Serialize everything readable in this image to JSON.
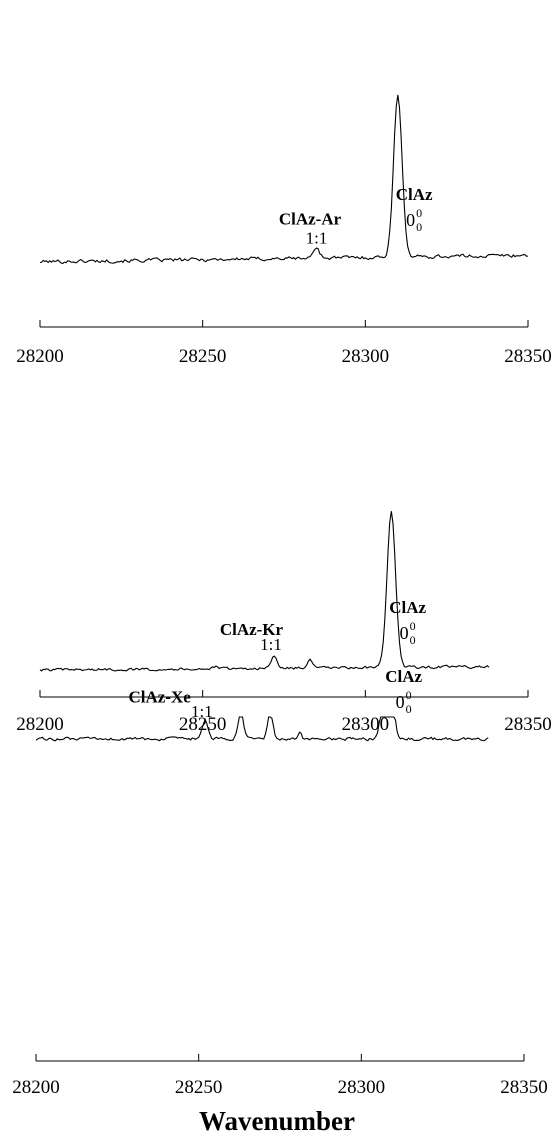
{
  "figure": {
    "xlabel": "Wavenumber"
  },
  "chart_data": [
    {
      "type": "line",
      "title": "",
      "xlim": [
        28200,
        28350
      ],
      "xticks": [
        28200,
        28250,
        28300,
        28350
      ],
      "tick_labels": [
        "28200",
        "28250",
        "28300",
        "28350"
      ],
      "trace_end": 28350,
      "baseline": 0.05,
      "noise": 0.045,
      "slope": 0.1,
      "series": [
        {
          "values": [
            {
              "x": 28285,
              "y": 0.17,
              "w": 0.9
            },
            {
              "x": 28310,
              "y": 2.5,
              "w": 1.3
            }
          ]
        }
      ],
      "annotations": [
        {
          "label": "ClAz",
          "sub": "0",
          "sup": "0",
          "x": 28315,
          "y": 1.0
        },
        {
          "label": "ClAz-Ar",
          "sub": "",
          "sup": "",
          "x": 28283,
          "y": 0.62
        },
        {
          "label": "1:1",
          "sub": "",
          "sup": "",
          "x": 28285,
          "y": 0.33
        }
      ]
    },
    {
      "type": "line",
      "title": "",
      "xlim": [
        28200,
        28350
      ],
      "xticks": [
        28200,
        28250,
        28300,
        28350
      ],
      "tick_labels": [
        "28200",
        "28250",
        "28300",
        "28350"
      ],
      "trace_end": 28338,
      "baseline": 0.05,
      "noise": 0.035,
      "slope": 0.06,
      "series": [
        {
          "values": [
            {
              "x": 28254,
              "y": 0.03,
              "w": 0.6
            },
            {
              "x": 28272,
              "y": 0.2,
              "w": 0.9
            },
            {
              "x": 28283,
              "y": 0.17,
              "w": 0.7
            },
            {
              "x": 28308,
              "y": 2.6,
              "w": 1.3
            }
          ]
        }
      ],
      "annotations": [
        {
          "label": "ClAz",
          "sub": "0",
          "sup": "0",
          "x": 28313,
          "y": 1.0
        },
        {
          "label": "ClAz-Kr",
          "sub": "",
          "sup": "",
          "x": 28265,
          "y": 0.63
        },
        {
          "label": "1:1",
          "sub": "",
          "sup": "",
          "x": 28271,
          "y": 0.38
        }
      ]
    },
    {
      "type": "line",
      "title": "",
      "xlim": [
        28200,
        28350
      ],
      "xticks": [
        28200,
        28250,
        28300,
        28350
      ],
      "tick_labels": [
        "28200",
        "28250",
        "28300",
        "28350"
      ],
      "trace_end": 28339,
      "baseline": 0.05,
      "noise": 0.04,
      "slope": 0.0,
      "series": [
        {
          "values": [
            {
              "x": 28252,
              "y": 0.3,
              "w": 0.9
            },
            {
              "x": 28263,
              "y": 0.45,
              "w": 0.8
            },
            {
              "x": 28272,
              "y": 0.43,
              "w": 0.8
            },
            {
              "x": 28281,
              "y": 0.1,
              "w": 0.6
            },
            {
              "x": 28308,
              "y": 2.65,
              "w": 1.2
            }
          ]
        }
      ],
      "annotations": [
        {
          "label": "ClAz",
          "sub": "0",
          "sup": "0",
          "x": 28313,
          "y": 1.0
        },
        {
          "label": "ClAz-Xe",
          "sub": "",
          "sup": "",
          "x": 28238,
          "y": 0.66
        },
        {
          "label": "1:1",
          "sub": "",
          "sup": "",
          "x": 28251,
          "y": 0.42
        }
      ]
    }
  ]
}
